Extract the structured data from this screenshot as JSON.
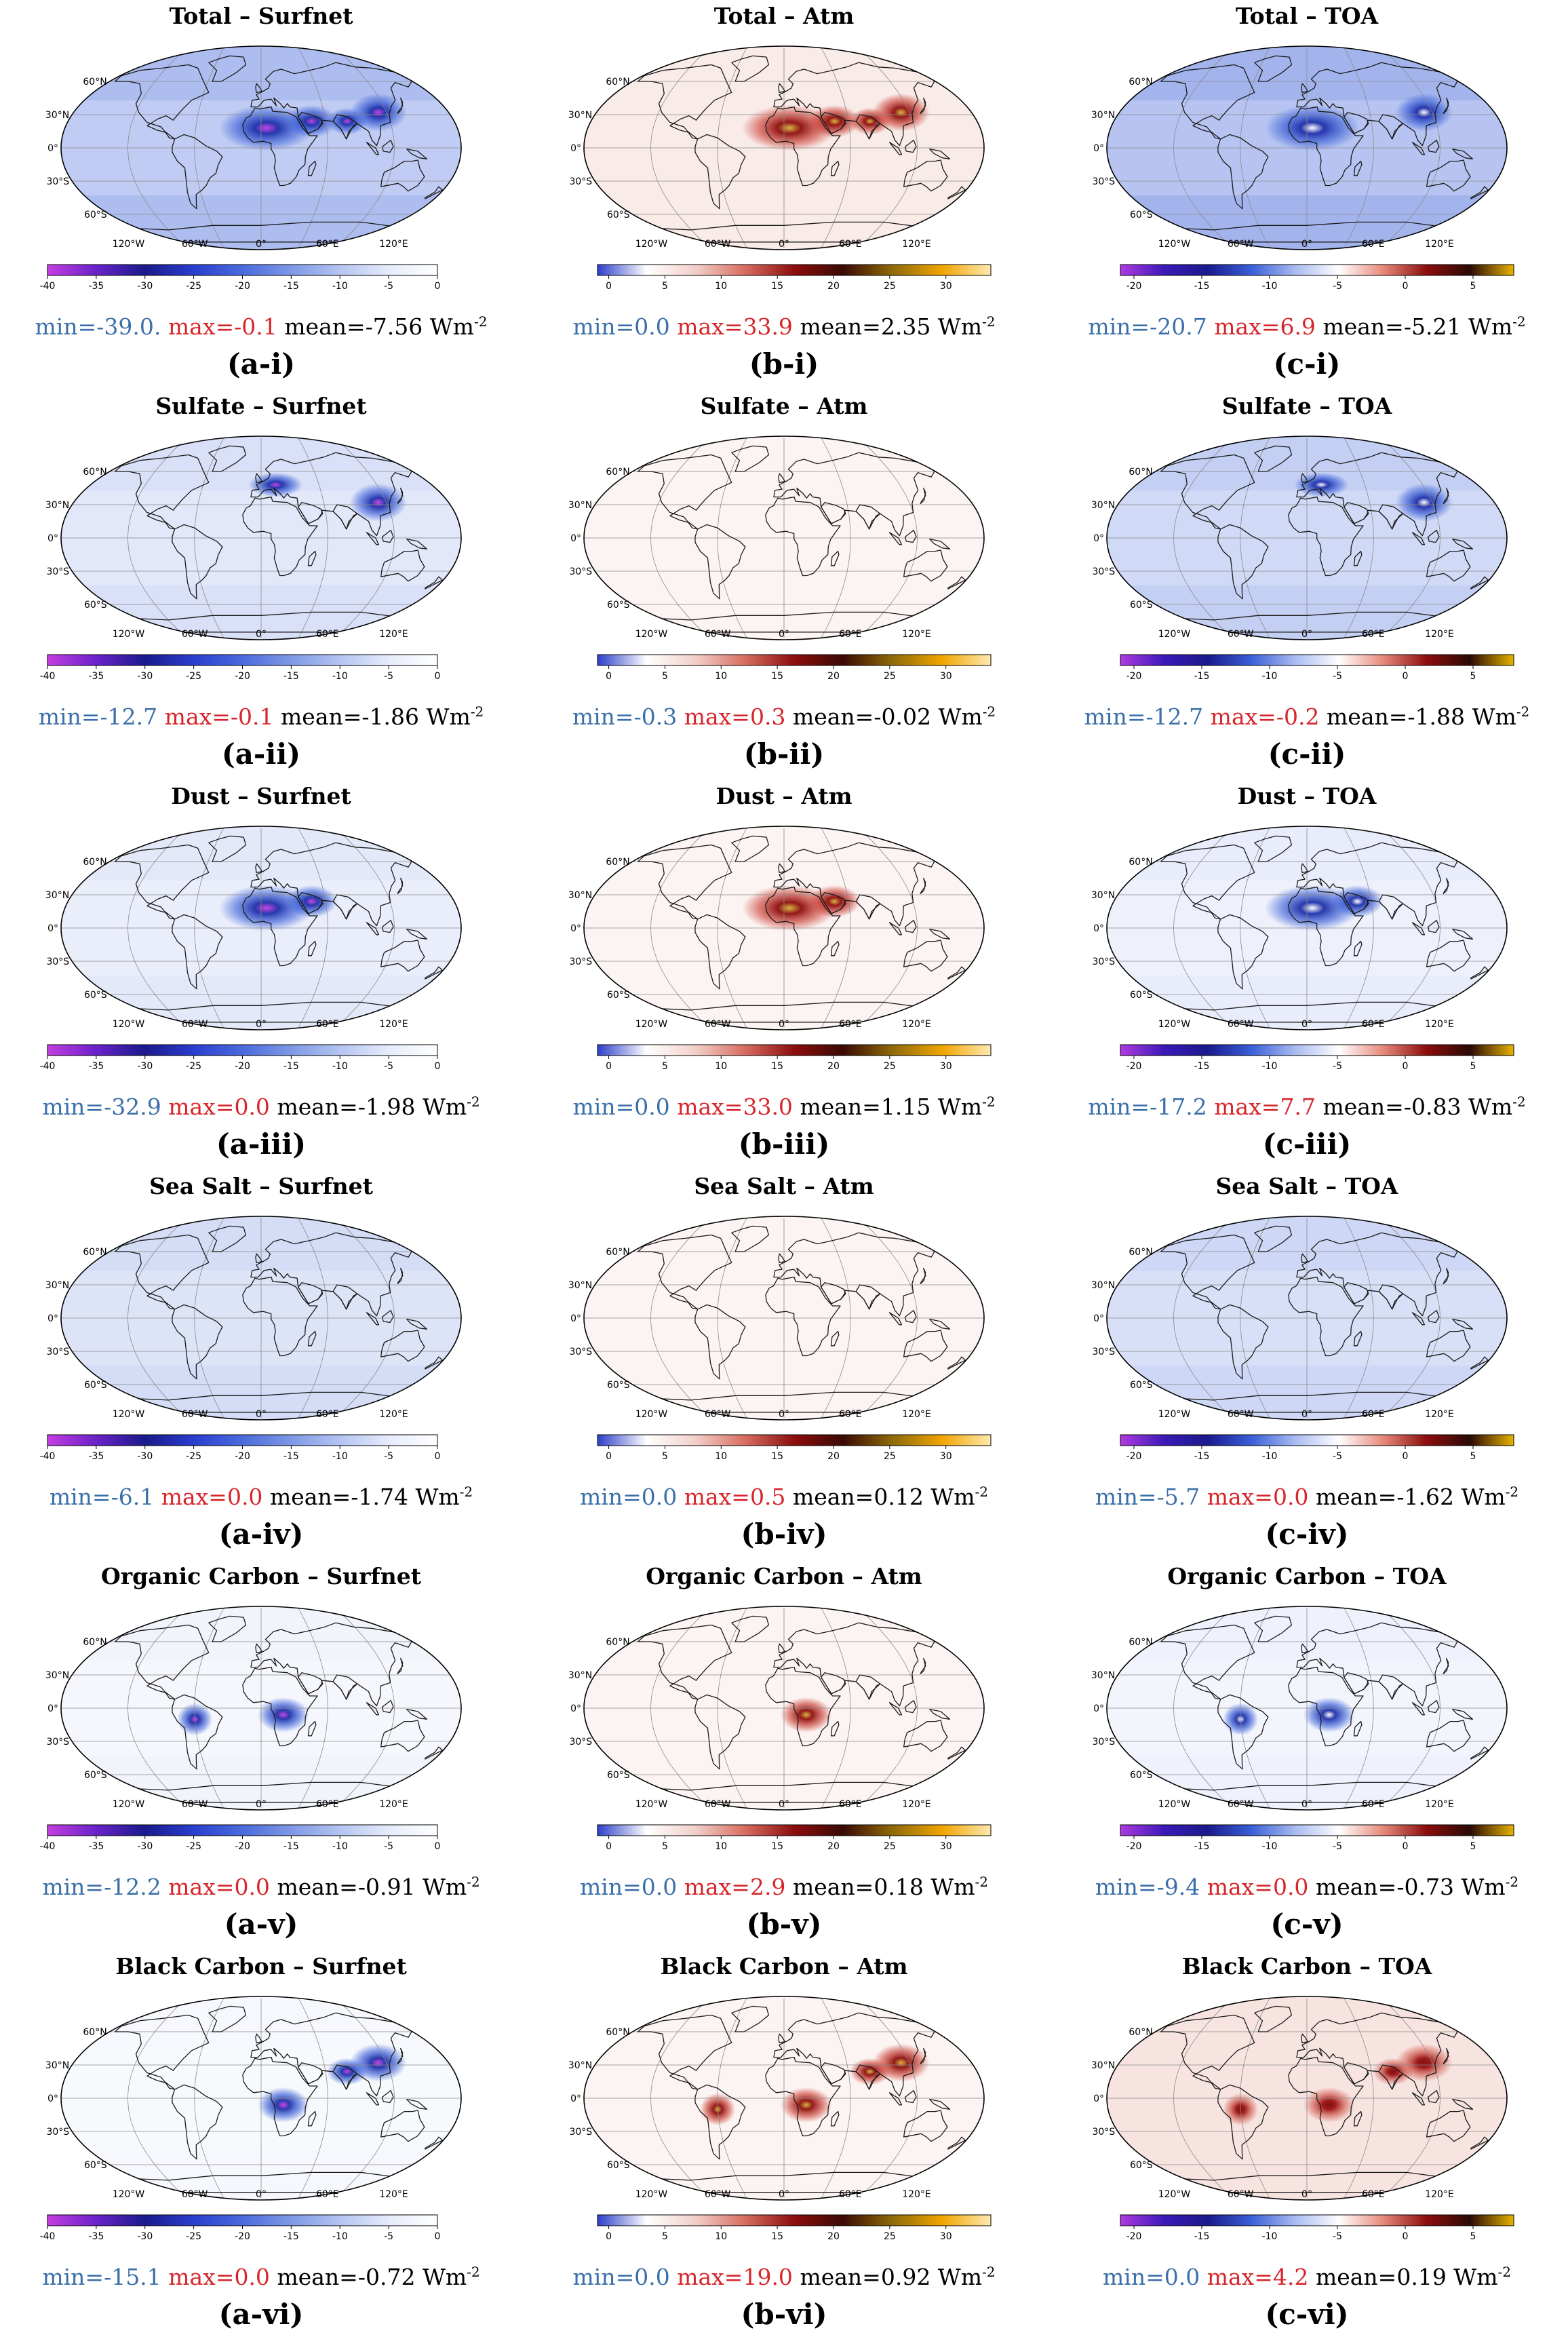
{
  "figure": {
    "map_tick_labels": {
      "lat": [
        "60°N",
        "30°N",
        "0°",
        "30°S",
        "60°S"
      ],
      "lon": [
        "120°W",
        "60°W",
        "0°",
        "60°E",
        "120°E"
      ]
    },
    "colorbars": {
      "surfnet": {
        "min": -40,
        "max": 0,
        "ticks": [
          "-40",
          "-35",
          "-30",
          "-25",
          "-20",
          "-15",
          "-10",
          "-5",
          "0"
        ],
        "colors": [
          "#c43ee0",
          "#6a22c9",
          "#1a1a8c",
          "#2a3ecf",
          "#4a6bdc",
          "#7e98e6",
          "#b4c4f1",
          "#e6ecfb",
          "#ffffff"
        ]
      },
      "atm": {
        "min": -1,
        "max": 34,
        "ticks": [
          "0",
          "5",
          "10",
          "15",
          "20",
          "25",
          "30"
        ],
        "colors": [
          "#2d3ec9",
          "#ffffff",
          "#f2cfc9",
          "#d76d60",
          "#8c0d0d",
          "#3a0a05",
          "#8f6a08",
          "#f0a400",
          "#ffe9b0"
        ]
      },
      "toa": {
        "min": -21,
        "max": 8,
        "ticks": [
          "-20",
          "-15",
          "-10",
          "-5",
          "0",
          "5"
        ],
        "colors": [
          "#b03ae0",
          "#3b1ab8",
          "#1a1a8c",
          "#3a5fd8",
          "#a9bbf0",
          "#ffffff",
          "#e88a7c",
          "#8c0d0d",
          "#2a0a05",
          "#e8b400"
        ]
      }
    },
    "colors": {
      "negative_base": "#3a5fd8",
      "positive_base": "#b40f0f",
      "land_outline": "#1a1a1a",
      "graticule": "#8a8a8a"
    },
    "panels": [
      {
        "title": "Total – Surfnet",
        "type": "surfnet",
        "min": "min=-39.0.",
        "max": "max=-0.1",
        "mean": "mean=-7.56 Wm",
        "unit_exp": "-2",
        "label": "(a-i)",
        "intensity": 0.75,
        "hotspots": [
          "sahara",
          "arabia",
          "eastasia",
          "southasia"
        ]
      },
      {
        "title": "Total – Atm",
        "type": "atm",
        "min": "min=0.0",
        "max": "max=33.9",
        "mean": "mean=2.35 Wm",
        "unit_exp": "-2",
        "label": "(b-i)",
        "intensity": 0.45,
        "hotspots": [
          "sahara",
          "arabia",
          "eastasia",
          "southasia"
        ]
      },
      {
        "title": "Total – TOA",
        "type": "toa",
        "min": "min=-20.7",
        "max": "max=6.9",
        "mean": "mean=-5.21 Wm",
        "unit_exp": "-2",
        "label": "(c-i)",
        "intensity": 0.85,
        "hotspots": [
          "sahara",
          "eastasia"
        ]
      },
      {
        "title": "Sulfate – Surfnet",
        "type": "surfnet",
        "min": "min=-12.7",
        "max": "max=-0.1",
        "mean": "mean=-1.86 Wm",
        "unit_exp": "-2",
        "label": "(a-ii)",
        "intensity": 0.35,
        "hotspots": [
          "eastasia",
          "europe"
        ]
      },
      {
        "title": "Sulfate – Atm",
        "type": "atm",
        "min": "min=-0.3",
        "max": "max=0.3",
        "mean": "mean=-0.02 Wm",
        "unit_exp": "-2",
        "label": "(b-ii)",
        "intensity": 0.05,
        "hotspots": []
      },
      {
        "title": "Sulfate – TOA",
        "type": "toa",
        "min": "min=-12.7",
        "max": "max=-0.2",
        "mean": "mean=-1.88 Wm",
        "unit_exp": "-2",
        "label": "(c-ii)",
        "intensity": 0.55,
        "hotspots": [
          "eastasia",
          "europe"
        ]
      },
      {
        "title": "Dust – Surfnet",
        "type": "surfnet",
        "min": "min=-32.9",
        "max": "max=0.0",
        "mean": "mean=-1.98 Wm",
        "unit_exp": "-2",
        "label": "(a-iii)",
        "intensity": 0.25,
        "hotspots": [
          "sahara",
          "arabia"
        ]
      },
      {
        "title": "Dust – Atm",
        "type": "atm",
        "min": "min=0.0",
        "max": "max=33.0",
        "mean": "mean=1.15 Wm",
        "unit_exp": "-2",
        "label": "(b-iii)",
        "intensity": 0.15,
        "hotspots": [
          "sahara",
          "arabia"
        ]
      },
      {
        "title": "Dust – TOA",
        "type": "toa",
        "min": "min=-17.2",
        "max": "max=7.7",
        "mean": "mean=-0.83 Wm",
        "unit_exp": "-2",
        "label": "(c-iii)",
        "intensity": 0.2,
        "hotspots": [
          "sahara",
          "arabia"
        ]
      },
      {
        "title": "Sea Salt – Surfnet",
        "type": "surfnet",
        "min": "min=-6.1",
        "max": "max=0.0",
        "mean": "mean=-1.74 Wm",
        "unit_exp": "-2",
        "label": "(a-iv)",
        "intensity": 0.4,
        "hotspots": []
      },
      {
        "title": "Sea Salt – Atm",
        "type": "atm",
        "min": "min=0.0",
        "max": "max=0.5",
        "mean": "mean=0.12 Wm",
        "unit_exp": "-2",
        "label": "(b-iv)",
        "intensity": 0.1,
        "hotspots": []
      },
      {
        "title": "Sea Salt – TOA",
        "type": "toa",
        "min": "min=-5.7",
        "max": "max=0.0",
        "mean": "mean=-1.62 Wm",
        "unit_exp": "-2",
        "label": "(c-iv)",
        "intensity": 0.45,
        "hotspots": []
      },
      {
        "title": "Organic Carbon – Surfnet",
        "type": "surfnet",
        "min": "min=-12.2",
        "max": "max=0.0",
        "mean": "mean=-0.91 Wm",
        "unit_exp": "-2",
        "label": "(a-v)",
        "intensity": 0.12,
        "hotspots": [
          "centralafrica",
          "amazon"
        ]
      },
      {
        "title": "Organic Carbon – Atm",
        "type": "atm",
        "min": "min=0.0",
        "max": "max=2.9",
        "mean": "mean=0.18 Wm",
        "unit_exp": "-2",
        "label": "(b-v)",
        "intensity": 0.08,
        "hotspots": [
          "centralafrica"
        ]
      },
      {
        "title": "Organic Carbon – TOA",
        "type": "toa",
        "min": "min=-9.4",
        "max": "max=0.0",
        "mean": "mean=-0.73 Wm",
        "unit_exp": "-2",
        "label": "(c-v)",
        "intensity": 0.15,
        "hotspots": [
          "centralafrica",
          "amazon"
        ]
      },
      {
        "title": "Black Carbon – Surfnet",
        "type": "surfnet",
        "min": "min=-15.1",
        "max": "max=0.0",
        "mean": "mean=-0.72 Wm",
        "unit_exp": "-2",
        "label": "(a-vi)",
        "intensity": 0.08,
        "hotspots": [
          "centralafrica",
          "eastasia",
          "southasia"
        ]
      },
      {
        "title": "Black Carbon – Atm",
        "type": "atm",
        "min": "min=0.0",
        "max": "max=19.0",
        "mean": "mean=0.92 Wm",
        "unit_exp": "-2",
        "label": "(b-vi)",
        "intensity": 0.25,
        "hotspots": [
          "centralafrica",
          "amazon",
          "eastasia",
          "southasia"
        ]
      },
      {
        "title": "Black Carbon – TOA",
        "type": "toa_pos",
        "min": "min=0.0",
        "max": "max=4.2",
        "mean": "mean=0.19 Wm",
        "unit_exp": "-2",
        "label": "(c-vi)",
        "intensity": 0.2,
        "hotspots": [
          "centralafrica",
          "amazon",
          "eastasia",
          "southasia"
        ]
      }
    ]
  }
}
